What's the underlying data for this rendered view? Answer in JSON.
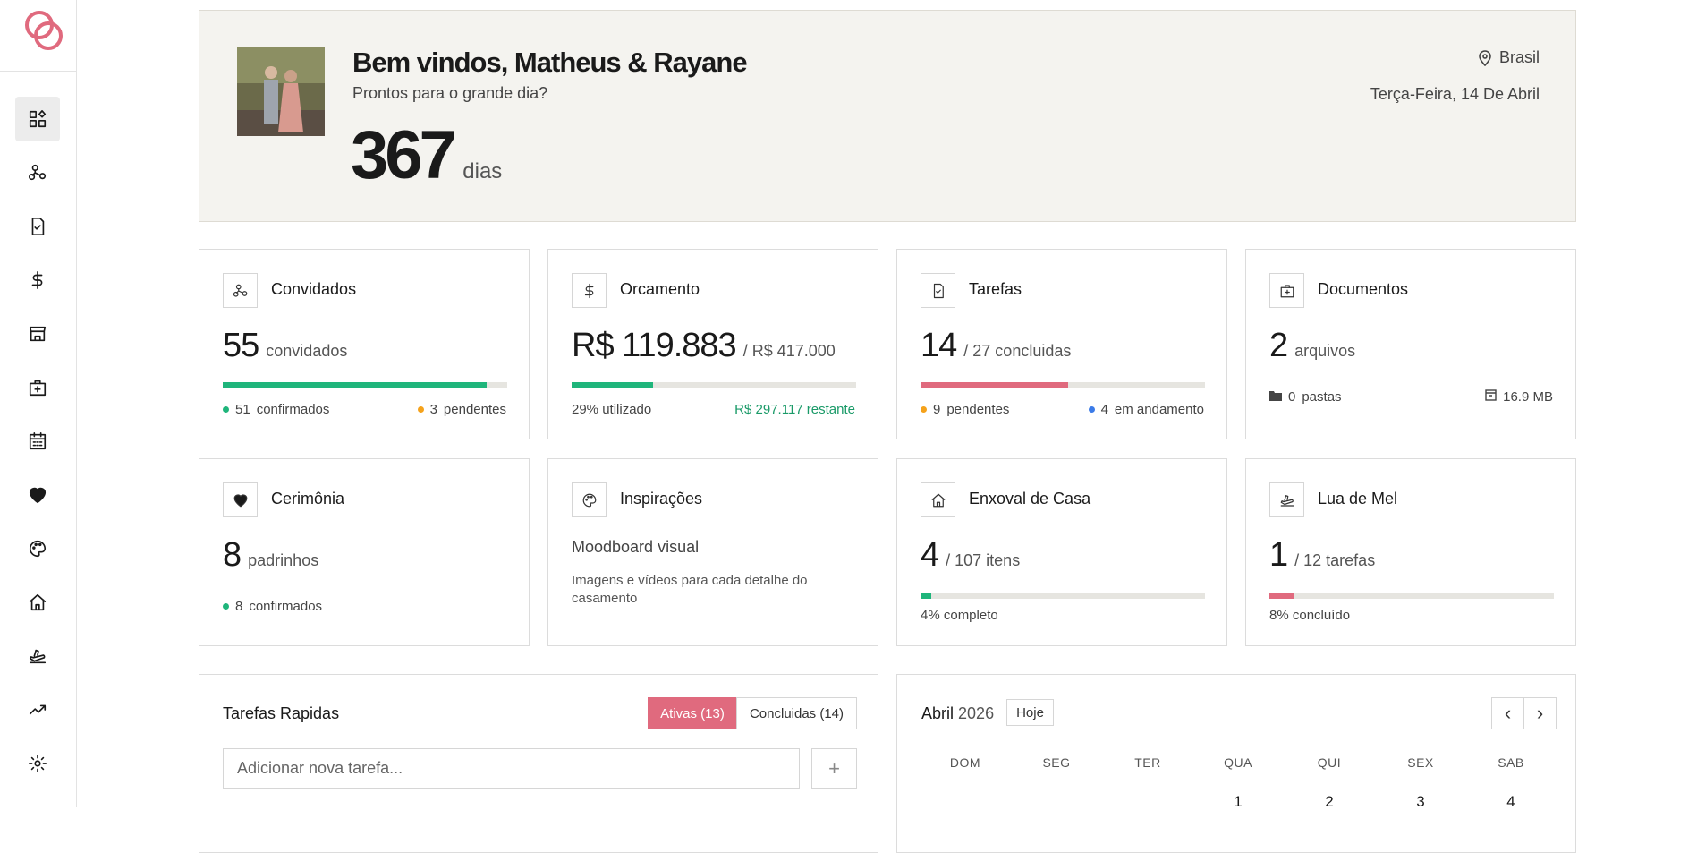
{
  "header": {
    "title": "Bem vindos, Matheus & Rayane",
    "subtitle": "Prontos para o grande dia?",
    "days": "367",
    "days_unit": "dias",
    "location": "Brasil",
    "date": "Terça-Feira, 14 De Abril"
  },
  "cards": [
    {
      "title": "Convidados",
      "number": 55,
      "unit": "convidados",
      "bar": {
        "value": 51,
        "total": 55,
        "color": "#1fb57b"
      },
      "footer": [
        {
          "dot": "#1fb57b",
          "count": 51,
          "text": "confirmados"
        },
        {
          "dot": "#f5a21b",
          "count": 3,
          "text": "pendentes"
        }
      ]
    },
    {
      "title": "Orcamento",
      "number": {
        "value": 119883,
        "label": "R$ 119.883"
      },
      "unit": {
        "value": 417000,
        "label": "/ R$ 417.000"
      },
      "bar": {
        "color": "#1fb57b"
      },
      "footer": [
        {
          "text": "29% utilizado"
        },
        {
          "text": "R$ 297.117 restante",
          "color": "#1a9a68"
        }
      ]
    },
    {
      "title": "Tarefas",
      "number": 14,
      "unit": {
        "value": 27,
        "label": "/ 27 concluidas"
      },
      "bar": {
        "color": "#e06a7e"
      },
      "footer": [
        {
          "dot": "#f5a21b",
          "count": 9,
          "text": "pendentes"
        },
        {
          "dot": "#3b7be8",
          "count": 4,
          "text": "em andamento"
        }
      ]
    },
    {
      "title": "Documentos",
      "number": 2,
      "unit": "arquivos",
      "footer": [
        {
          "folder": true,
          "count": 0,
          "text": "pastas"
        },
        {
          "box": true,
          "text": "16.9 MB"
        }
      ]
    },
    {
      "title": "Cerimônia",
      "number": 8,
      "unit": "padrinhos",
      "footer": [
        {
          "dot": "#1fb57b",
          "count": 8,
          "text": "confirmados"
        }
      ]
    },
    {
      "title": "Inspirações",
      "heading": "Moodboard visual",
      "description": "Imagens e vídeos para cada detalhe do casamento"
    },
    {
      "title": "Enxoval de Casa",
      "number": 4,
      "unit": {
        "value": 107,
        "label": "/ 107 itens"
      },
      "bar": {
        "color": "#1fb57b"
      },
      "footer": [
        {
          "text": "4% completo"
        }
      ]
    },
    {
      "title": "Lua de Mel",
      "number": 1,
      "unit": {
        "value": 12,
        "label": "/ 12 tarefas"
      },
      "bar": {
        "color": "#e06a7e"
      },
      "footer": [
        {
          "text": "8% concluído"
        }
      ]
    }
  ],
  "tasks": {
    "title": "Tarefas Rapidas",
    "tab_active": "Ativas (13)",
    "tab_done": "Concluidas (14)",
    "placeholder": "Adicionar nova tarefa...",
    "add": "+"
  },
  "calendar": {
    "month": "Abril",
    "year": "2026",
    "today": "Hoje",
    "prev": "‹",
    "next": "›",
    "weekdays": [
      "DOM",
      "SEG",
      "TER",
      "QUA",
      "QUI",
      "SEX",
      "SAB"
    ],
    "days": [
      null,
      null,
      null,
      1,
      2,
      3,
      4
    ]
  }
}
